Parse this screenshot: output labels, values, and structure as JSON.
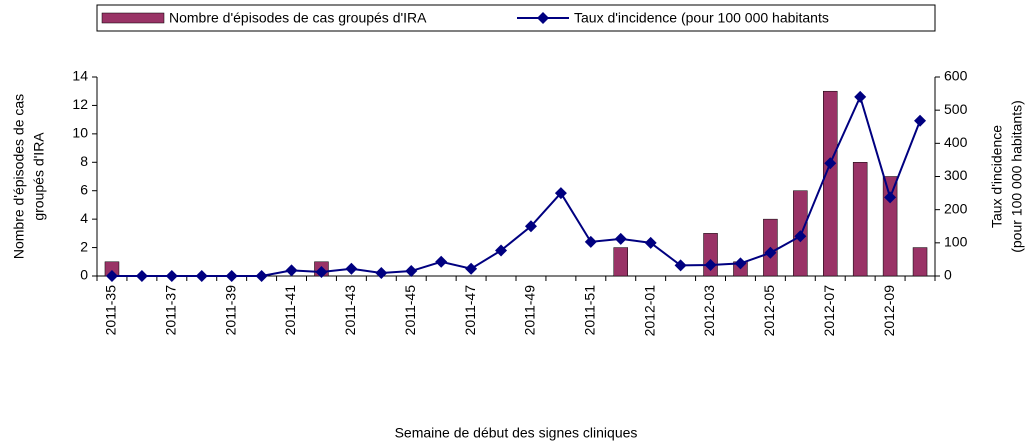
{
  "chart_data": {
    "type": "bar-line",
    "xlabel": "Semaine de début des signes cliniques",
    "ylabel": [
      "Nombre d'épisodes de cas",
      "groupés d'IRA"
    ],
    "y2label": [
      "Taux d'incidence",
      "(pour 100 000 habitants)"
    ],
    "categories": [
      "2011-35",
      null,
      "2011-37",
      null,
      "2011-39",
      null,
      "2011-41",
      null,
      "2011-43",
      null,
      "2011-45",
      null,
      "2011-47",
      null,
      "2011-49",
      null,
      "2011-51",
      null,
      "2012-01",
      null,
      "2012-03",
      null,
      "2012-05",
      null,
      "2012-07",
      null,
      "2012-09",
      null
    ],
    "series": [
      {
        "name": "Nombre d'épisodes de cas groupés d'IRA",
        "color": "#993366",
        "type": "bar",
        "values": [
          1,
          null,
          null,
          null,
          null,
          null,
          null,
          1,
          null,
          null,
          null,
          null,
          null,
          null,
          null,
          null,
          null,
          2,
          null,
          null,
          3,
          1,
          4,
          6,
          13,
          8,
          7,
          2
        ]
      },
      {
        "name": "Taux d'incidence (pour 100 000 habitants",
        "color": "#000080",
        "type": "line",
        "axis": "y2",
        "values": [
          0,
          0,
          0,
          0,
          0,
          0,
          17,
          12,
          22,
          9,
          15,
          43,
          22,
          77,
          150,
          250,
          103,
          112,
          100,
          32,
          33,
          38,
          70,
          120,
          340,
          540,
          237,
          468
        ]
      }
    ],
    "ylim": [
      0,
      14
    ],
    "yticks": [
      0,
      2,
      4,
      6,
      8,
      10,
      12,
      14
    ],
    "y2lim": [
      0,
      600
    ],
    "y2ticks": [
      0,
      100,
      200,
      300,
      400,
      500,
      600
    ],
    "grid": false,
    "legend": "top"
  }
}
